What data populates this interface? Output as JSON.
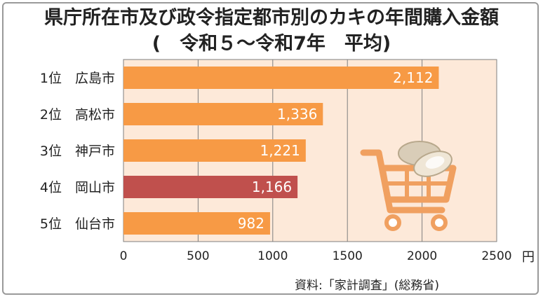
{
  "title_line1": "県庁所在市及び政令指定都市別のカキの年間購入金額",
  "title_line2": "(　令和５～令和7年　平均)",
  "source": "資料:「家計調査」(総務省)",
  "colors": {
    "bar": "#f79a45",
    "highlight_bar": "#c0504d",
    "plot_background": "#fde9d9",
    "grid": "#7f7f7f",
    "cart_icon": "#f0a060",
    "oyster": "#e8dcc8"
  },
  "icons": [
    "shopping-cart-icon",
    "oyster-icon"
  ],
  "chart_data": {
    "type": "bar",
    "orientation": "horizontal",
    "categories": [
      "1位　広島市",
      "2位　高松市",
      "3位　神戸市",
      "4位　岡山市",
      "5位　仙台市"
    ],
    "values": [
      2112,
      1336,
      1221,
      1166,
      982
    ],
    "data_labels": [
      "2,112",
      "1,336",
      "1,221",
      "1,166",
      "982"
    ],
    "highlight_index": 3,
    "xlim": [
      0,
      2500
    ],
    "xticks": [
      0,
      500,
      1000,
      1500,
      2000,
      2500
    ],
    "xtick_labels": [
      "0",
      "500",
      "1000",
      "1500",
      "2000",
      "2500"
    ],
    "x_unit": "円",
    "grid": true
  }
}
